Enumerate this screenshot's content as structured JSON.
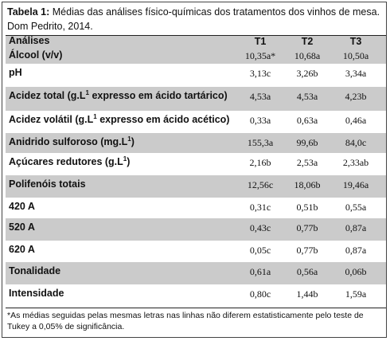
{
  "caption": {
    "label": "Tabela 1:",
    "text": "Médias das análises físico-químicas dos tratamentos dos vinhos de mesa. Dom Pedrito, 2014."
  },
  "table": {
    "header": [
      "Análises",
      "T1",
      "T2",
      "T3"
    ],
    "rows": [
      {
        "label": "Álcool (v/v)",
        "cells": [
          "10,35a*",
          "10,68a",
          "10,50a"
        ]
      },
      {
        "label": "pH",
        "cells": [
          "3,13c",
          "3,26b",
          "3,34a"
        ]
      },
      {
        "label": [
          "Acidez total (g.L",
          "1",
          " expresso em ácido tartárico)"
        ],
        "cells": [
          "4,53a",
          "4,53a",
          "4,23b"
        ]
      },
      {
        "label": [
          "Acidez volátil (g.L",
          "1",
          " expresso em ácido acético)"
        ],
        "cells": [
          "0,33a",
          "0,63a",
          "0,46a"
        ]
      },
      {
        "label": [
          "Anidrido sulforoso (mg.L",
          "1",
          ")"
        ],
        "cells": [
          "155,3a",
          "99,6b",
          "84,0c"
        ]
      },
      {
        "label": [
          "Açúcares redutores (g.L",
          "1",
          ")"
        ],
        "cells": [
          "2,16b",
          "2,53a",
          "2,33ab"
        ]
      },
      {
        "label": "Polifenóis totais",
        "cells": [
          "12,56c",
          "18,06b",
          "19,46a"
        ]
      },
      {
        "label": "420 A",
        "cells": [
          "0,31c",
          "0,51b",
          "0,55a"
        ]
      },
      {
        "label": "520 A",
        "cells": [
          "0,43c",
          "0,77b",
          "0,87a"
        ]
      },
      {
        "label": "620 A",
        "cells": [
          "0,05c",
          "0,77b",
          "0,87a"
        ]
      },
      {
        "label": "Tonalidade",
        "cells": [
          "0,61a",
          "0,56a",
          "0,06b"
        ]
      },
      {
        "label": "Intensidade",
        "cells": [
          "0,80c",
          "1,44b",
          "1,59a"
        ]
      }
    ]
  },
  "footnote": "*As médias seguidas pelas mesmas letras nas linhas não diferem estatisticamente pelo teste de Tukey a 0,05% de significância."
}
